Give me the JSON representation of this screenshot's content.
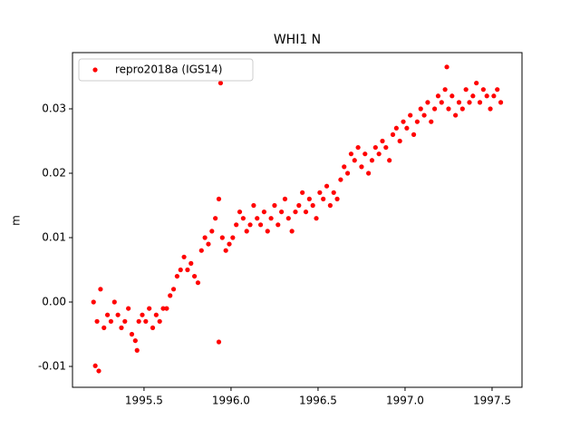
{
  "chart_data": {
    "type": "scatter",
    "title": "WHI1 N",
    "ylabel": "m",
    "series": [
      {
        "name": "repro2018a (IGS14)",
        "color": "#ff0000",
        "x": [
          1995.21,
          1995.23,
          1995.25,
          1995.27,
          1995.29,
          1995.31,
          1995.33,
          1995.35,
          1995.37,
          1995.39,
          1995.41,
          1995.43,
          1995.45,
          1995.47,
          1995.49,
          1995.51,
          1995.53,
          1995.55,
          1995.57,
          1995.59,
          1995.61,
          1995.63,
          1995.65,
          1995.67,
          1995.69,
          1995.71,
          1995.73,
          1995.75,
          1995.77,
          1995.79,
          1995.81,
          1995.83,
          1995.85,
          1995.87,
          1995.89,
          1995.91,
          1995.93,
          1995.95,
          1995.97,
          1995.99,
          1996.01,
          1996.03,
          1996.05,
          1996.07,
          1996.09,
          1996.11,
          1996.13,
          1996.15,
          1996.17,
          1996.19,
          1996.21,
          1996.23,
          1996.25,
          1996.27,
          1996.29,
          1996.31,
          1996.33,
          1996.35,
          1996.37,
          1996.39,
          1996.41,
          1996.43,
          1996.45,
          1996.47,
          1996.49,
          1996.51,
          1996.53,
          1996.55,
          1996.57,
          1996.59,
          1996.61,
          1996.63,
          1996.65,
          1996.67,
          1996.69,
          1996.71,
          1996.73,
          1996.75,
          1996.77,
          1996.79,
          1996.81,
          1996.83,
          1996.85,
          1996.87,
          1996.89,
          1996.91,
          1996.93,
          1996.95,
          1996.97,
          1996.99,
          1997.01,
          1997.03,
          1997.05,
          1997.07,
          1997.09,
          1997.11,
          1997.13,
          1997.15,
          1997.17,
          1997.19,
          1997.21,
          1997.23,
          1997.25,
          1997.27,
          1997.29,
          1997.31,
          1997.33,
          1997.35,
          1997.37,
          1997.39,
          1997.41,
          1997.43,
          1997.45,
          1997.47,
          1997.49,
          1997.51,
          1997.53,
          1997.55,
          1995.94,
          1995.93,
          1995.22,
          1995.24,
          1997.24,
          1995.46
        ],
        "values": [
          0.0,
          -0.003,
          0.002,
          -0.004,
          -0.002,
          -0.003,
          0.0,
          -0.002,
          -0.004,
          -0.003,
          -0.001,
          -0.005,
          -0.006,
          -0.003,
          -0.002,
          -0.003,
          -0.001,
          -0.004,
          -0.002,
          -0.003,
          -0.001,
          -0.001,
          0.001,
          0.002,
          0.004,
          0.005,
          0.007,
          0.005,
          0.006,
          0.004,
          0.003,
          0.008,
          0.01,
          0.009,
          0.011,
          0.013,
          0.016,
          0.01,
          0.008,
          0.009,
          0.01,
          0.012,
          0.014,
          0.013,
          0.011,
          0.012,
          0.015,
          0.013,
          0.012,
          0.014,
          0.011,
          0.013,
          0.015,
          0.012,
          0.014,
          0.016,
          0.013,
          0.011,
          0.014,
          0.015,
          0.017,
          0.014,
          0.016,
          0.015,
          0.013,
          0.017,
          0.016,
          0.018,
          0.015,
          0.017,
          0.016,
          0.019,
          0.021,
          0.02,
          0.023,
          0.022,
          0.024,
          0.021,
          0.023,
          0.02,
          0.022,
          0.024,
          0.023,
          0.025,
          0.024,
          0.022,
          0.026,
          0.027,
          0.025,
          0.028,
          0.027,
          0.029,
          0.026,
          0.028,
          0.03,
          0.029,
          0.031,
          0.028,
          0.03,
          0.032,
          0.031,
          0.033,
          0.03,
          0.032,
          0.029,
          0.031,
          0.03,
          0.033,
          0.031,
          0.032,
          0.034,
          0.031,
          0.033,
          0.032,
          0.03,
          0.032,
          0.033,
          0.031,
          0.034,
          -0.0062,
          -0.0099,
          -0.0107,
          0.0365,
          -0.0075
        ]
      }
    ],
    "xlim": [
      1995.089,
      1997.672
    ],
    "ylim": [
      -0.01324,
      0.03873
    ],
    "xticks": [
      1995.5,
      {
        "value": 1996.0,
        "label": "1996.0"
      },
      1996.5,
      {
        "value": 1997.0,
        "label": "1997.0"
      },
      1997.5
    ],
    "yticks": [
      -0.01,
      {
        "value": 0,
        "label": "0.00"
      },
      0.01,
      0.02,
      0.03
    ],
    "legend": "upper left"
  }
}
